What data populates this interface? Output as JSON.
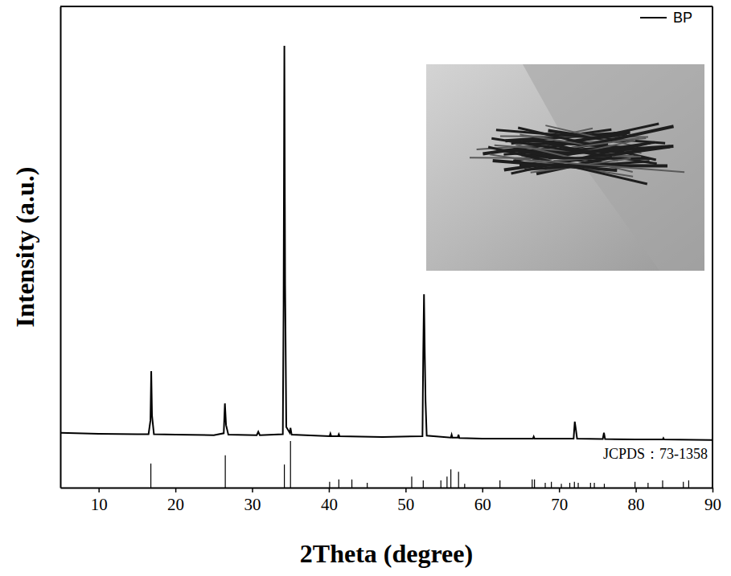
{
  "chart_data": {
    "type": "line",
    "x_label": "2Theta (degree)",
    "y_label": "Intensity (a.u.)",
    "xlim": [
      5,
      90
    ],
    "xticks": [
      10,
      20,
      30,
      40,
      50,
      60,
      70,
      80,
      90
    ],
    "ylim": [
      0,
      100
    ],
    "tick_labels": "x",
    "legend": "upper right",
    "series": [
      {
        "name": "BP",
        "type": "line",
        "color": "#000000",
        "x": [
          5,
          10,
          15,
          16.5,
          16.75,
          16.85,
          16.95,
          17.2,
          20,
          25,
          26.3,
          26.45,
          26.6,
          26.9,
          30.6,
          30.8,
          31.0,
          34.0,
          34.1,
          34.2,
          34.3,
          34.45,
          34.9,
          35.0,
          35.15,
          40.1,
          40.2,
          40.3,
          41.2,
          41.3,
          41.4,
          47,
          52.2,
          52.3,
          52.4,
          52.5,
          52.6,
          52.75,
          55.9,
          56.0,
          56.1,
          56.8,
          56.9,
          57.0,
          60,
          66.6,
          66.7,
          66.8,
          71.9,
          72.05,
          72.2,
          72.35,
          75.7,
          75.85,
          76.0,
          80,
          83.5,
          83.6,
          83.7,
          90
        ],
        "values": [
          11.4,
          11.2,
          11.1,
          11.1,
          14,
          24.2,
          15,
          11.1,
          11.0,
          10.9,
          11.3,
          17.5,
          13,
          11.0,
          10.9,
          11.6,
          10.9,
          11.1,
          38,
          91.8,
          42,
          12.6,
          11.4,
          12.4,
          11.0,
          10.7,
          11.2,
          10.7,
          10.7,
          11.1,
          10.7,
          10.5,
          10.7,
          28,
          40.2,
          28,
          18,
          10.8,
          10.4,
          11.0,
          10.4,
          10.4,
          11.0,
          10.3,
          10.2,
          10.2,
          10.6,
          10.2,
          10.2,
          13.7,
          12,
          10.2,
          10.1,
          11.4,
          10.1,
          10.0,
          10.0,
          10.3,
          10.0,
          9.9
        ]
      },
      {
        "name": "JCPDS：73-1358",
        "type": "stick",
        "color": "#000000",
        "x": [
          16.8,
          26.5,
          34.2,
          35.0,
          40.1,
          41.3,
          43.0,
          45.0,
          50.8,
          52.3,
          54.6,
          55.4,
          55.9,
          56.9,
          57.7,
          62.3,
          66.5,
          66.8,
          68.2,
          69.0,
          70.3,
          71.4,
          72.0,
          72.5,
          74.1,
          74.6,
          75.9,
          79.9,
          81.6,
          83.5,
          86.2,
          86.9
        ],
        "values": [
          5.0,
          6.7,
          4.8,
          9.7,
          1.2,
          1.7,
          1.7,
          1.0,
          2.3,
          1.5,
          1.5,
          2.3,
          3.8,
          3.3,
          0.8,
          1.5,
          1.7,
          1.7,
          1.0,
          1.2,
          0.8,
          1.0,
          1.2,
          1.0,
          1.0,
          1.0,
          0.8,
          1.2,
          1.0,
          1.5,
          1.2,
          1.5
        ]
      }
    ]
  }
}
